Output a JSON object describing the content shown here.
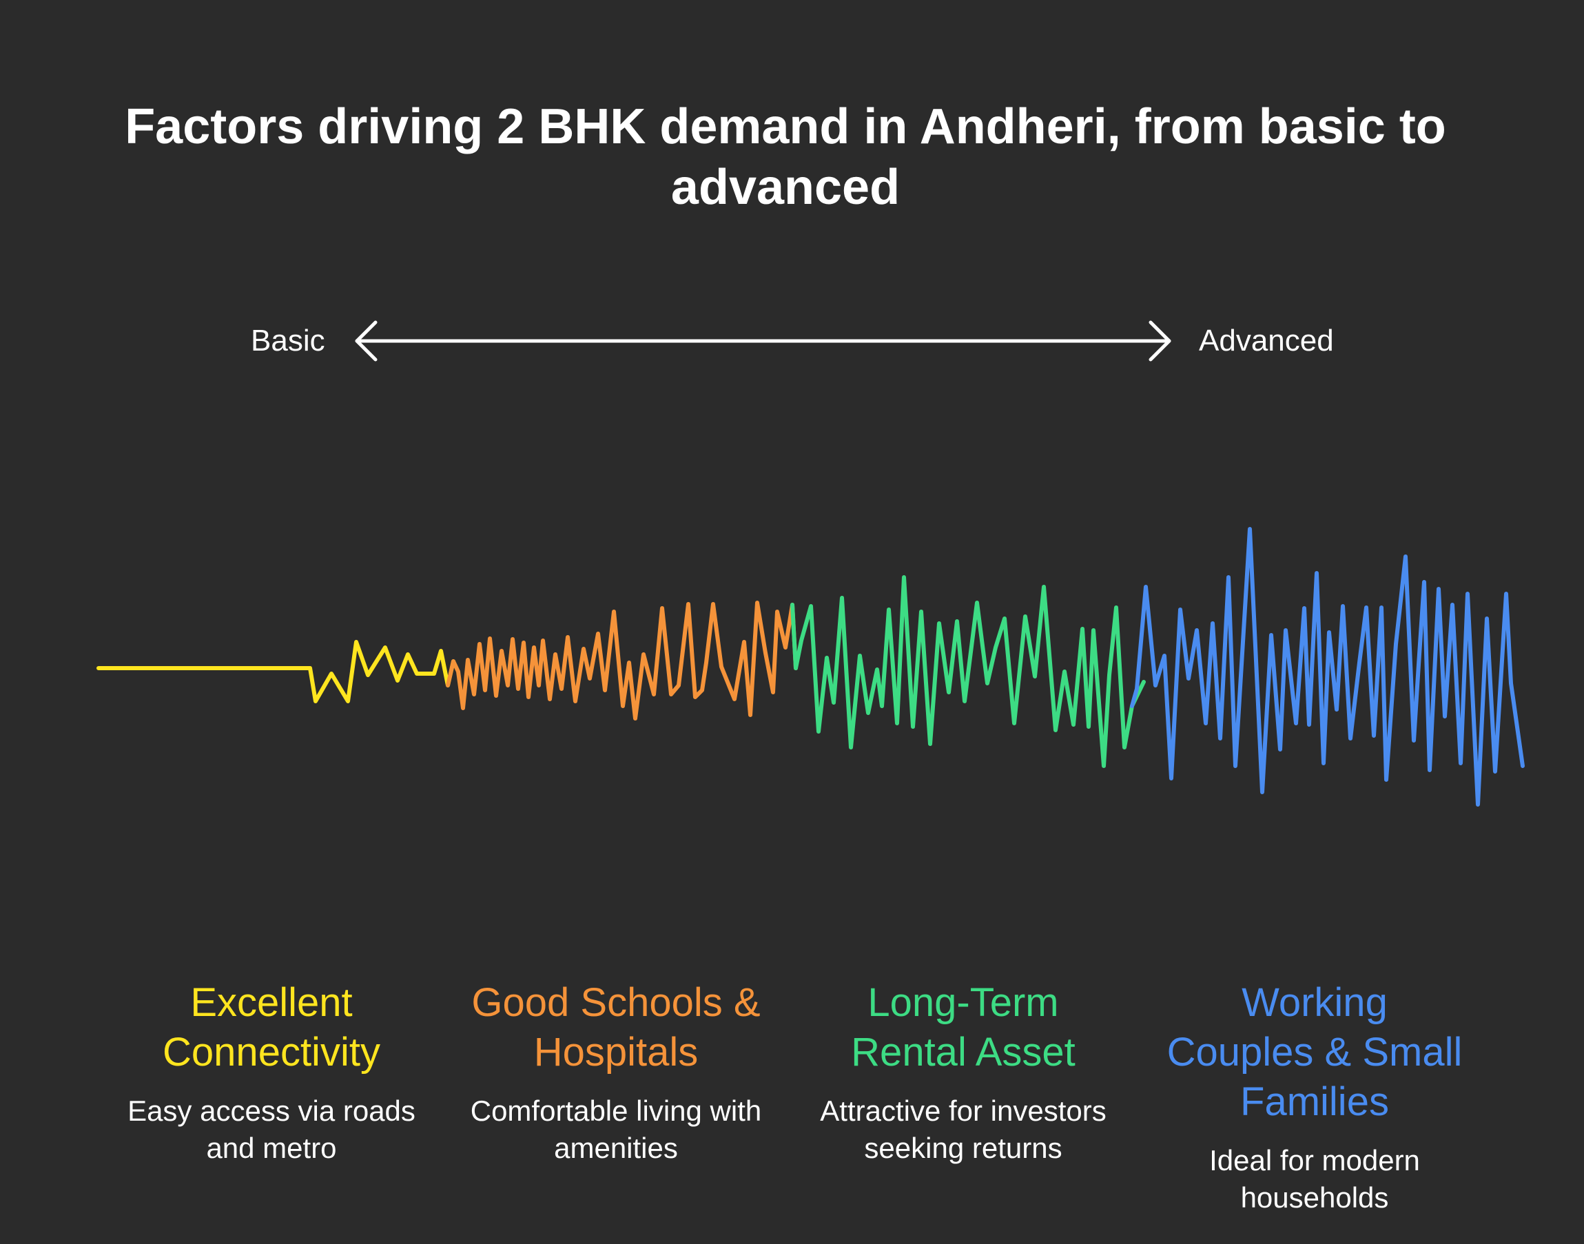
{
  "title": "Factors driving 2 BHK demand in Andheri, from basic to advanced",
  "scale": {
    "start_label": "Basic",
    "end_label": "Advanced"
  },
  "factors": [
    {
      "title": "Excellent Connectivity",
      "description": "Easy access via roads and metro",
      "color": "#ffe51f"
    },
    {
      "title": "Good Schools & Hospitals",
      "description": "Comfortable living with amenities",
      "color": "#f5933a"
    },
    {
      "title": "Long-Term Rental Asset",
      "description": "Attractive for investors seeking returns",
      "color": "#3ddc84"
    },
    {
      "title": "Working Couples & Small Families",
      "description": "Ideal for modern households",
      "color": "#4a8cf0"
    }
  ]
}
